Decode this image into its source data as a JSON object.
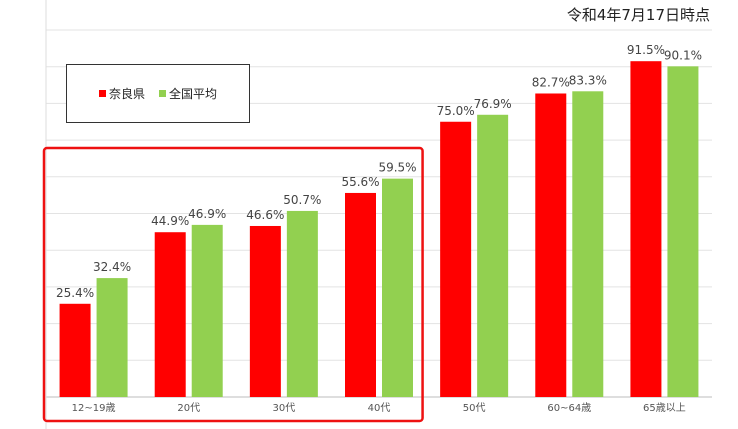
{
  "date_label": "令和4年7月17日時点",
  "highlight_color": "#ee1111",
  "chart_data": {
    "type": "bar",
    "categories": [
      "12~19歳",
      "20代",
      "30代",
      "40代",
      "50代",
      "60~64歳",
      "65歳以上"
    ],
    "series": [
      {
        "name": "奈良県",
        "color": "#ff0000",
        "values": [
          25.4,
          44.9,
          46.6,
          55.6,
          75.0,
          82.7,
          91.5
        ],
        "labels": [
          "25.4%",
          "44.9%",
          "46.6%",
          "55.6%",
          "75.0%",
          "82.7%",
          "91.5%"
        ]
      },
      {
        "name": "全国平均",
        "color": "#92d050",
        "values": [
          32.4,
          46.9,
          50.7,
          59.5,
          76.9,
          83.3,
          90.1
        ],
        "labels": [
          "32.4%",
          "46.9%",
          "50.7%",
          "59.5%",
          "76.9%",
          "83.3%",
          "90.1%"
        ]
      }
    ],
    "ylim": [
      0,
      100
    ],
    "grid": true,
    "legend": "top-left",
    "highlight_categories": [
      "12~19歳",
      "20代",
      "30代",
      "40代"
    ]
  }
}
